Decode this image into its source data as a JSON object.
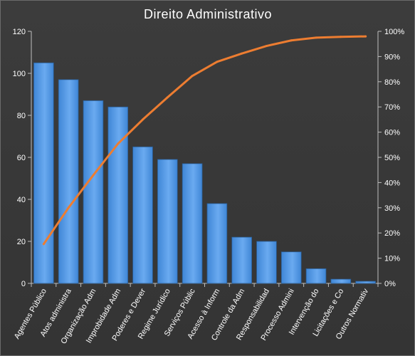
{
  "chart_data": {
    "type": "bar",
    "title": "Direito  Administrativo",
    "categories": [
      "Agentes Público",
      "Atos administra",
      "Organização Adm",
      "Improbidade Adm",
      "Poderes e Dever",
      "Regime Jurídico",
      "Serviços Públic",
      "Acesso à Inform",
      "Controle da Adm",
      "Responsabilidad",
      "Processo Admini",
      "Intervenção do",
      "Licitações e Co",
      "Outros Normativ"
    ],
    "series": [
      {
        "type": "bar",
        "values": [
          105,
          97,
          87,
          84,
          65,
          59,
          57,
          38,
          22,
          20,
          15,
          7,
          2,
          1
        ],
        "color": "#4a90d9",
        "axis": "left"
      },
      {
        "type": "line",
        "values": [
          15.6,
          30.0,
          42.9,
          55.4,
          65.0,
          73.8,
          82.3,
          87.9,
          91.2,
          94.2,
          96.4,
          97.5,
          97.8,
          98.0
        ],
        "color": "#ed7d31",
        "axis": "right"
      }
    ],
    "y_left": {
      "min": 0,
      "max": 120,
      "step": 20,
      "ticks": [
        "0",
        "20",
        "40",
        "60",
        "80",
        "100",
        "120"
      ]
    },
    "y_right": {
      "min": 0,
      "max": 100,
      "step": 10,
      "ticks": [
        "0%",
        "10%",
        "20%",
        "30%",
        "40%",
        "50%",
        "60%",
        "70%",
        "80%",
        "90%",
        "100%"
      ]
    },
    "grid": false,
    "legend": "none"
  }
}
